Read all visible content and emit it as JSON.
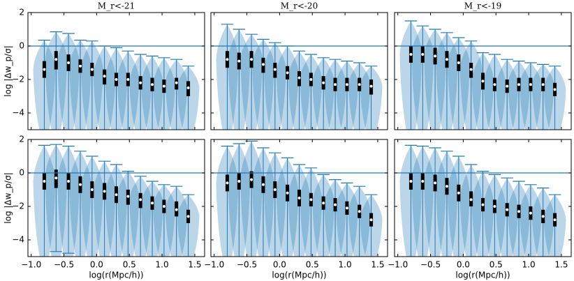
{
  "chart_data": [
    {
      "type": "violin",
      "title": "M_r<-21",
      "ylabel": "log |Δw_p/σ|",
      "color": "#1f77b4",
      "hline": 0,
      "xlim": [
        -1.05,
        1.65
      ],
      "ylim": [
        -5,
        2
      ],
      "xticks": [
        {
          "value": -1,
          "label": "−1.0"
        },
        {
          "value": -0.5,
          "label": "−0.5"
        },
        {
          "value": 0,
          "label": "0.0"
        },
        {
          "value": 0.5,
          "label": "0.5"
        },
        {
          "value": 1,
          "label": "1.0"
        },
        {
          "value": 1.5,
          "label": "1.5"
        }
      ],
      "yticks": [
        {
          "value": -4,
          "label": "−4"
        },
        {
          "value": -2,
          "label": "−2"
        },
        0,
        2
      ],
      "x": [
        -0.8,
        -0.62,
        -0.43,
        -0.25,
        -0.07,
        0.12,
        0.3,
        0.48,
        0.67,
        0.85,
        1.03,
        1.22,
        1.4
      ],
      "medians": [
        -1.4,
        -0.8,
        -1.0,
        -1.2,
        -1.4,
        -1.8,
        -2.0,
        -2.0,
        -2.2,
        -2.3,
        -2.4,
        -2.2,
        -2.5
      ],
      "q3": [
        -0.9,
        -0.3,
        -0.5,
        -0.8,
        -1.0,
        -1.4,
        -1.6,
        -1.6,
        -1.8,
        -1.9,
        -2.0,
        -1.9,
        -2.1
      ],
      "q1": [
        -1.9,
        -1.4,
        -1.5,
        -1.6,
        -1.8,
        -2.3,
        -2.4,
        -2.4,
        -2.6,
        -2.7,
        -2.8,
        -2.6,
        -3.0
      ],
      "maxes": [
        0.35,
        0.85,
        0.75,
        0.35,
        0.3,
        0.0,
        -0.1,
        -0.3,
        -0.5,
        -0.6,
        -0.7,
        -0.8,
        -1.2
      ]
    },
    {
      "type": "violin",
      "title": "M_r<-20",
      "color": "#1f77b4",
      "hline": 0,
      "xlim": [
        -1.05,
        1.65
      ],
      "ylim": [
        -5,
        2
      ],
      "xticks": [
        {
          "value": -1,
          "label": "−1.0"
        },
        {
          "value": -0.5,
          "label": "−0.5"
        },
        {
          "value": 0,
          "label": "0.0"
        },
        {
          "value": 0.5,
          "label": "0.5"
        },
        {
          "value": 1,
          "label": "1.0"
        },
        {
          "value": 1.5,
          "label": "1.5"
        }
      ],
      "yticks": [
        {
          "value": -4,
          "label": "−4"
        },
        {
          "value": -2,
          "label": "−2"
        },
        0,
        2
      ],
      "x": [
        -0.8,
        -0.62,
        -0.43,
        -0.25,
        -0.07,
        0.12,
        0.3,
        0.48,
        0.67,
        0.85,
        1.03,
        1.22,
        1.4
      ],
      "medians": [
        -0.8,
        -0.9,
        -0.8,
        -1.1,
        -1.4,
        -1.6,
        -1.9,
        -2.0,
        -2.2,
        -2.3,
        -2.3,
        -2.3,
        -2.4
      ],
      "q3": [
        -0.3,
        -0.4,
        -0.3,
        -0.7,
        -1.0,
        -1.2,
        -1.5,
        -1.6,
        -1.8,
        -1.9,
        -1.9,
        -1.9,
        -2.0
      ],
      "q1": [
        -1.3,
        -1.4,
        -1.3,
        -1.6,
        -1.9,
        -2.0,
        -2.4,
        -2.4,
        -2.6,
        -2.7,
        -2.7,
        -2.7,
        -2.9
      ],
      "maxes": [
        1.3,
        1.0,
        0.7,
        0.4,
        0.2,
        0.0,
        -0.3,
        -0.5,
        -0.7,
        -0.8,
        -0.9,
        -1.0,
        -1.2
      ]
    },
    {
      "type": "violin",
      "title": "M_r<-19",
      "color": "#1f77b4",
      "hline": 0,
      "xlim": [
        -1.05,
        1.65
      ],
      "ylim": [
        -5,
        2
      ],
      "xticks": [
        {
          "value": -1,
          "label": "−1.0"
        },
        {
          "value": -0.5,
          "label": "−0.5"
        },
        {
          "value": 0,
          "label": "0.0"
        },
        {
          "value": 0.5,
          "label": "0.5"
        },
        {
          "value": 1,
          "label": "1.0"
        },
        {
          "value": 1.5,
          "label": "1.5"
        }
      ],
      "yticks": [
        {
          "value": -4,
          "label": "−4"
        },
        {
          "value": -2,
          "label": "−2"
        },
        0,
        2
      ],
      "x": [
        -0.8,
        -0.62,
        -0.43,
        -0.25,
        -0.07,
        0.12,
        0.3,
        0.48,
        0.67,
        0.85,
        1.03,
        1.22,
        1.4
      ],
      "medians": [
        -0.5,
        -0.5,
        -0.6,
        -0.8,
        -1.0,
        -1.4,
        -2.1,
        -2.3,
        -2.4,
        -2.3,
        -2.3,
        -2.3,
        -2.6
      ],
      "q3": [
        0.0,
        0.0,
        -0.1,
        -0.3,
        -0.5,
        -1.0,
        -1.6,
        -1.9,
        -2.0,
        -1.9,
        -1.9,
        -1.9,
        -2.2
      ],
      "q1": [
        -1.0,
        -1.0,
        -1.1,
        -1.3,
        -1.5,
        -1.9,
        -2.6,
        -2.7,
        -2.8,
        -2.7,
        -2.7,
        -2.7,
        -3.0
      ],
      "maxes": [
        1.5,
        1.2,
        1.0,
        0.8,
        0.5,
        0.3,
        -0.4,
        -0.5,
        -0.8,
        -0.9,
        -1.0,
        -1.1,
        -1.2
      ]
    },
    {
      "type": "violin",
      "xlabel": "log(r(Mpc/h))",
      "ylabel": "log |Δw_p/σ|",
      "color": "#1f77b4",
      "hline": 0,
      "xlim": [
        -1.05,
        1.65
      ],
      "ylim": [
        -5,
        2
      ],
      "xticks": [
        {
          "value": -1,
          "label": "−1.0"
        },
        {
          "value": -0.5,
          "label": "−0.5"
        },
        {
          "value": 0,
          "label": "0.0"
        },
        {
          "value": 0.5,
          "label": "0.5"
        },
        {
          "value": 1,
          "label": "1.0"
        },
        {
          "value": 1.5,
          "label": "1.5"
        }
      ],
      "yticks": [
        {
          "value": -4,
          "label": "−4"
        },
        {
          "value": -2,
          "label": "−2"
        },
        0,
        2
      ],
      "x": [
        -0.8,
        -0.62,
        -0.43,
        -0.25,
        -0.07,
        0.12,
        0.3,
        0.48,
        0.67,
        0.85,
        1.03,
        1.22,
        1.4
      ],
      "medians": [
        -0.5,
        -0.3,
        -0.5,
        -0.7,
        -1.0,
        -1.1,
        -1.3,
        -1.4,
        -1.6,
        -1.8,
        -2.0,
        -2.2,
        -2.6
      ],
      "q3": [
        0.0,
        0.2,
        0.0,
        -0.2,
        -0.5,
        -0.6,
        -0.8,
        -1.0,
        -1.2,
        -1.4,
        -1.6,
        -1.7,
        -2.2
      ],
      "q1": [
        -1.0,
        -0.9,
        -1.0,
        -1.2,
        -1.5,
        -1.6,
        -1.8,
        -1.9,
        -2.1,
        -2.2,
        -2.4,
        -2.6,
        -3.0
      ],
      "maxes": [
        1.65,
        1.7,
        1.6,
        1.3,
        1.0,
        0.7,
        0.5,
        0.1,
        -0.2,
        -0.5,
        -0.7,
        -0.8,
        -1.3
      ],
      "mins": [
        null,
        -4.7,
        -4.8,
        null,
        null,
        null,
        null,
        null,
        null,
        null,
        null,
        null,
        null
      ]
    },
    {
      "type": "violin",
      "xlabel": "log(r(Mpc/h))",
      "color": "#1f77b4",
      "hline": 0,
      "xlim": [
        -1.05,
        1.65
      ],
      "ylim": [
        -5,
        2
      ],
      "xticks": [
        {
          "value": -1,
          "label": "−1.0"
        },
        {
          "value": -0.5,
          "label": "−0.5"
        },
        {
          "value": 0,
          "label": "0.0"
        },
        {
          "value": 0.5,
          "label": "0.5"
        },
        {
          "value": 1,
          "label": "1.0"
        },
        {
          "value": 1.5,
          "label": "1.5"
        }
      ],
      "yticks": [
        {
          "value": -4,
          "label": "−4"
        },
        {
          "value": -2,
          "label": "−2"
        },
        0,
        2
      ],
      "x": [
        -0.8,
        -0.62,
        -0.43,
        -0.25,
        -0.07,
        0.12,
        0.3,
        0.48,
        0.67,
        0.85,
        1.03,
        1.22,
        1.4
      ],
      "medians": [
        -0.6,
        -0.5,
        -0.4,
        -0.7,
        -1.0,
        -1.2,
        -1.5,
        -1.6,
        -1.8,
        -1.9,
        -2.1,
        -2.3,
        -2.8
      ],
      "q3": [
        -0.1,
        0.0,
        0.1,
        -0.2,
        -0.5,
        -0.7,
        -1.0,
        -1.2,
        -1.4,
        -1.5,
        -1.7,
        -1.9,
        -2.4
      ],
      "q1": [
        -1.1,
        -1.0,
        -0.9,
        -1.2,
        -1.5,
        -1.7,
        -2.0,
        -2.0,
        -2.2,
        -2.3,
        -2.5,
        -2.7,
        -3.2
      ],
      "maxes": [
        1.6,
        1.75,
        1.9,
        1.5,
        1.2,
        0.9,
        0.5,
        0.3,
        -0.1,
        -0.4,
        -0.6,
        -0.8,
        -1.3
      ]
    },
    {
      "type": "violin",
      "xlabel": "log(r(Mpc/h))",
      "color": "#1f77b4",
      "hline": 0,
      "xlim": [
        -1.05,
        1.65
      ],
      "ylim": [
        -5,
        2
      ],
      "xticks": [
        {
          "value": -1,
          "label": "−1.0"
        },
        {
          "value": -0.5,
          "label": "−0.5"
        },
        {
          "value": 0,
          "label": "0.0"
        },
        {
          "value": 0.5,
          "label": "0.5"
        },
        {
          "value": 1,
          "label": "1.0"
        },
        {
          "value": 1.5,
          "label": "1.5"
        }
      ],
      "yticks": [
        {
          "value": -4,
          "label": "−4"
        },
        {
          "value": -2,
          "label": "−2"
        },
        0,
        2
      ],
      "x": [
        -0.8,
        -0.62,
        -0.43,
        -0.25,
        -0.07,
        0.12,
        0.3,
        0.48,
        0.67,
        0.85,
        1.03,
        1.22,
        1.4
      ],
      "medians": [
        -0.5,
        -0.5,
        -0.6,
        -0.8,
        -1.2,
        -1.6,
        -1.9,
        -2.0,
        -2.2,
        -2.3,
        -2.4,
        -2.6,
        -2.8
      ],
      "q3": [
        0.0,
        0.0,
        -0.1,
        -0.3,
        -0.7,
        -1.1,
        -1.5,
        -1.6,
        -1.8,
        -1.9,
        -2.0,
        -2.2,
        -2.4
      ],
      "q1": [
        -1.0,
        -1.0,
        -1.1,
        -1.3,
        -1.7,
        -2.0,
        -2.3,
        -2.4,
        -2.6,
        -2.7,
        -2.8,
        -3.0,
        -3.2
      ],
      "maxes": [
        1.65,
        1.6,
        1.5,
        1.3,
        1.0,
        0.5,
        0.1,
        -0.1,
        -0.3,
        -0.5,
        -0.7,
        -0.9,
        -1.3
      ]
    }
  ]
}
